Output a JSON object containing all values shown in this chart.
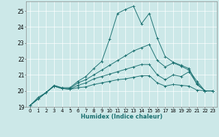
{
  "title": "",
  "xlabel": "Humidex (Indice chaleur)",
  "ylabel": "",
  "bg_color": "#cce8e8",
  "line_color": "#1a7070",
  "grid_color": "#ffffff",
  "xlim": [
    -0.5,
    23.5
  ],
  "ylim": [
    19,
    25.6
  ],
  "xticks": [
    0,
    1,
    2,
    3,
    4,
    5,
    6,
    7,
    8,
    9,
    10,
    11,
    12,
    13,
    14,
    15,
    16,
    17,
    18,
    19,
    20,
    21,
    22,
    23
  ],
  "yticks": [
    19,
    20,
    21,
    22,
    23,
    24,
    25
  ],
  "series": [
    [
      19.1,
      19.6,
      19.9,
      20.35,
      20.2,
      20.2,
      20.6,
      20.9,
      21.4,
      21.85,
      23.25,
      24.85,
      25.1,
      25.3,
      24.2,
      24.85,
      23.3,
      22.15,
      21.8,
      21.6,
      21.4,
      20.4,
      20.0,
      20.0
    ],
    [
      19.1,
      19.5,
      19.9,
      20.3,
      20.15,
      20.15,
      20.5,
      20.7,
      21.0,
      21.3,
      21.6,
      21.9,
      22.2,
      22.5,
      22.7,
      22.9,
      21.9,
      21.5,
      21.75,
      21.55,
      21.3,
      20.6,
      20.0,
      20.0
    ],
    [
      19.1,
      19.5,
      19.9,
      20.3,
      20.15,
      20.1,
      20.35,
      20.5,
      20.75,
      20.9,
      21.05,
      21.2,
      21.35,
      21.5,
      21.65,
      21.65,
      21.0,
      20.7,
      21.0,
      20.9,
      21.2,
      20.45,
      20.0,
      20.0
    ],
    [
      19.1,
      19.5,
      19.9,
      20.3,
      20.15,
      20.1,
      20.2,
      20.25,
      20.4,
      20.5,
      20.6,
      20.7,
      20.75,
      20.85,
      20.95,
      20.95,
      20.5,
      20.3,
      20.4,
      20.35,
      20.3,
      20.05,
      20.0,
      20.0
    ]
  ],
  "xlabel_fontsize": 6,
  "xlabel_color": "#1a7070",
  "tick_fontsize": 5,
  "linewidth": 0.7,
  "markersize": 2.5
}
